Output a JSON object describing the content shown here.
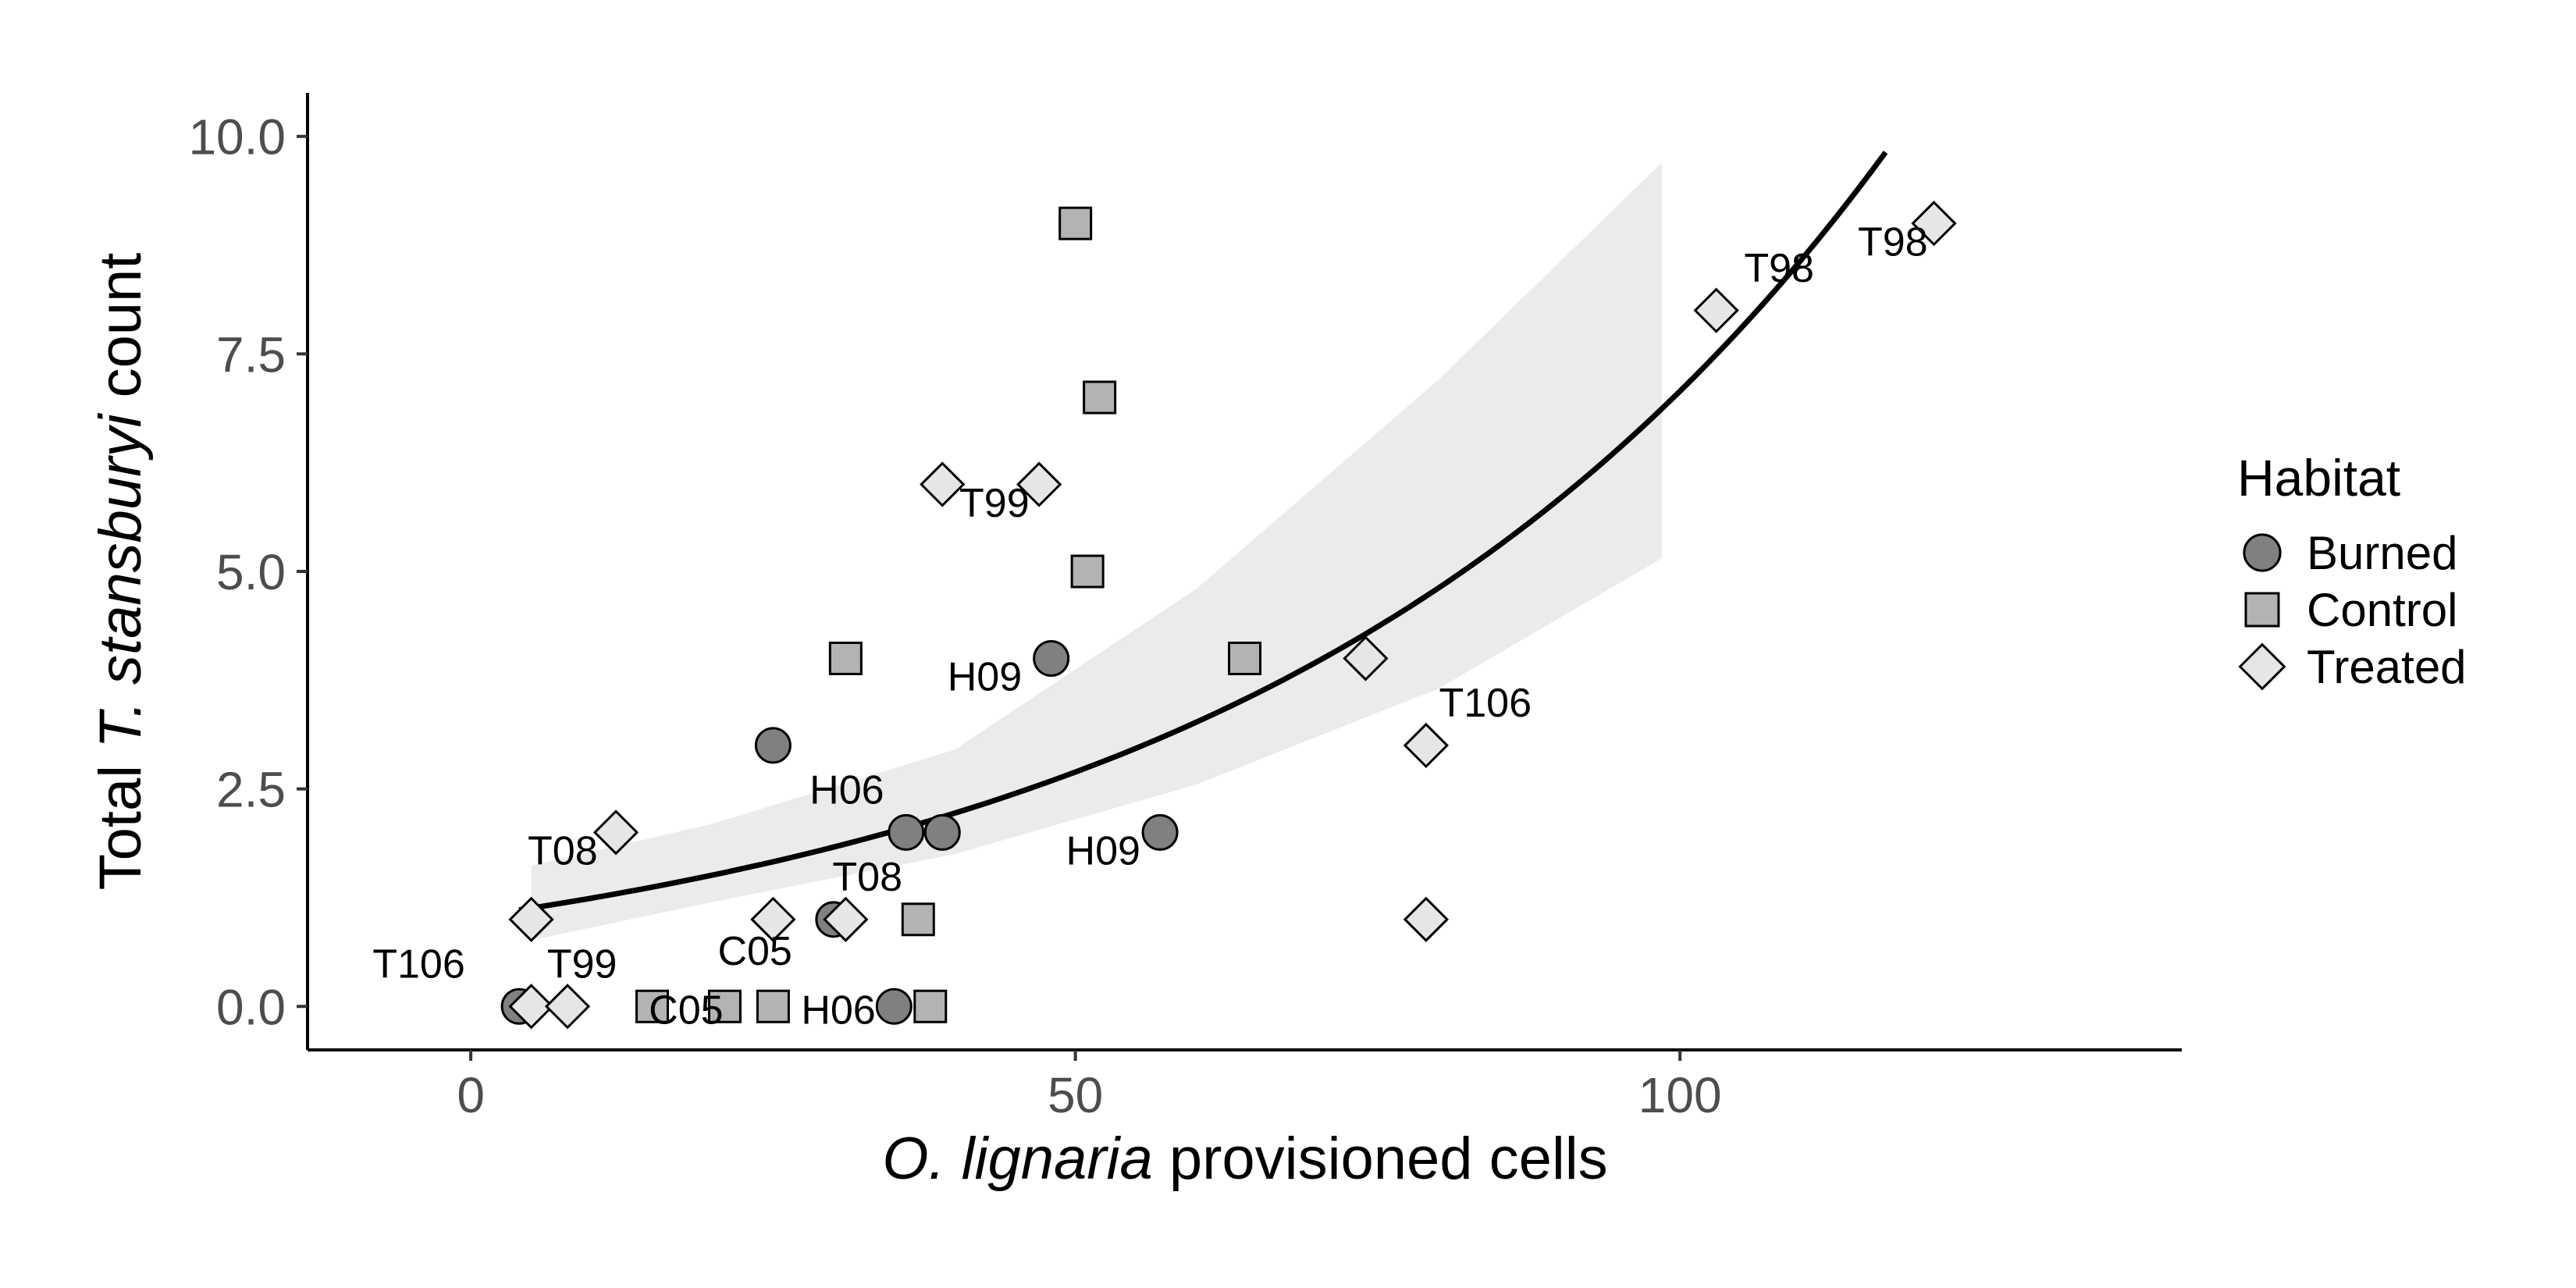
{
  "chart_data": {
    "type": "scatter",
    "title": "",
    "xlabel_italic": "O. lignaria",
    "xlabel_rest": " provisioned cells",
    "ylabel_pre": "Total ",
    "ylabel_italic": "T. stansburyi",
    "ylabel_post": " count",
    "xlim": [
      -13.5,
      141.5
    ],
    "ylim": [
      -0.5,
      10.5
    ],
    "x_ticks": [
      0,
      50,
      100
    ],
    "x_tick_labels": [
      "0",
      "50",
      "100"
    ],
    "y_ticks": [
      0,
      2.5,
      5,
      7.5,
      10
    ],
    "y_tick_labels": [
      "0.0",
      "2.5",
      "5.0",
      "7.5",
      "10.0"
    ],
    "grid": false,
    "legend": {
      "title": "Habitat",
      "position": "right",
      "entries": [
        {
          "label": "Burned",
          "shape": "circle",
          "color": "#808080"
        },
        {
          "label": "Control",
          "shape": "square",
          "color": "#b3b3b3"
        },
        {
          "label": "Treated",
          "shape": "diamond",
          "color": "#e6e6e6"
        }
      ]
    },
    "series": [
      {
        "name": "Burned",
        "shape": "circle",
        "color": "#808080",
        "points": [
          {
            "x": 4,
            "y": 0
          },
          {
            "x": 25,
            "y": 3
          },
          {
            "x": 30,
            "y": 1
          },
          {
            "x": 35,
            "y": 0
          },
          {
            "x": 36,
            "y": 2
          },
          {
            "x": 39,
            "y": 2
          },
          {
            "x": 48,
            "y": 4
          },
          {
            "x": 57,
            "y": 2
          }
        ]
      },
      {
        "name": "Control",
        "shape": "square",
        "color": "#b3b3b3",
        "points": [
          {
            "x": 15,
            "y": 0
          },
          {
            "x": 21,
            "y": 0
          },
          {
            "x": 25,
            "y": 0
          },
          {
            "x": 31,
            "y": 4
          },
          {
            "x": 37,
            "y": 1
          },
          {
            "x": 38,
            "y": 0
          },
          {
            "x": 50,
            "y": 9
          },
          {
            "x": 51,
            "y": 5
          },
          {
            "x": 52,
            "y": 7
          },
          {
            "x": 64,
            "y": 4
          }
        ]
      },
      {
        "name": "Treated",
        "shape": "diamond",
        "color": "#e6e6e6",
        "points": [
          {
            "x": 5,
            "y": 1
          },
          {
            "x": 5,
            "y": 0
          },
          {
            "x": 8,
            "y": 0
          },
          {
            "x": 12,
            "y": 2
          },
          {
            "x": 25,
            "y": 1
          },
          {
            "x": 31,
            "y": 1
          },
          {
            "x": 39,
            "y": 6
          },
          {
            "x": 47,
            "y": 6
          },
          {
            "x": 74,
            "y": 4
          },
          {
            "x": 79,
            "y": 3
          },
          {
            "x": 79,
            "y": 1
          },
          {
            "x": 103,
            "y": 8
          },
          {
            "x": 121,
            "y": 9
          }
        ]
      }
    ],
    "annotations": [
      {
        "text": "T106",
        "x": -4.3,
        "y": 0.33
      },
      {
        "text": "T99",
        "x": 9.2,
        "y": 0.33
      },
      {
        "text": "C05",
        "x": 23.5,
        "y": 0.48
      },
      {
        "text": "C05",
        "x": 17.8,
        "y": -0.2
      },
      {
        "text": "H06",
        "x": 30.4,
        "y": -0.2
      },
      {
        "text": "T08",
        "x": 7.6,
        "y": 1.63
      },
      {
        "text": "T08",
        "x": 32.8,
        "y": 1.33
      },
      {
        "text": "H06",
        "x": 31.1,
        "y": 2.33
      },
      {
        "text": "H09",
        "x": 42.5,
        "y": 3.63
      },
      {
        "text": "H09",
        "x": 52.3,
        "y": 1.63
      },
      {
        "text": "T99",
        "x": 43.3,
        "y": 5.63
      },
      {
        "text": "T106",
        "x": 83.9,
        "y": 3.33
      },
      {
        "text": "T98",
        "x": 108.2,
        "y": 8.33
      },
      {
        "text": "T98",
        "x": 117.6,
        "y": 8.63
      }
    ],
    "fit": {
      "type": "exponential",
      "equation": "y = exp(a + b*x)",
      "a": 0.026,
      "b": 0.0193,
      "x_range": [
        4,
        117
      ]
    },
    "ci_band": {
      "x": [
        5,
        20,
        40,
        60,
        80,
        98.5
      ],
      "lower": [
        0.76,
        1.2,
        1.75,
        2.55,
        3.65,
        5.15
      ],
      "upper": [
        1.62,
        2.1,
        2.95,
        4.8,
        7.2,
        9.7
      ]
    }
  }
}
